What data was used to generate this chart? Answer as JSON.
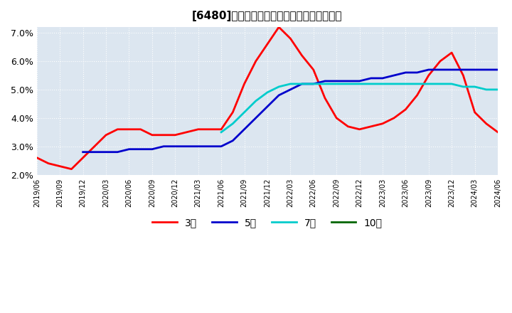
{
  "title": "[6480]　経常利益マージンの標準偏差の推移",
  "ylim": [
    0.02,
    0.072
  ],
  "yticks": [
    0.02,
    0.03,
    0.04,
    0.05,
    0.06,
    0.07
  ],
  "ytick_labels": [
    "2.0%",
    "3.0%",
    "4.0%",
    "5.0%",
    "6.0%",
    "7.0%"
  ],
  "legend_labels": [
    "3年",
    "5年",
    "7年",
    "10年"
  ],
  "legend_colors": [
    "#ff0000",
    "#0000cc",
    "#00cccc",
    "#006600"
  ],
  "background_color": "#dce6f0",
  "series_3y": {
    "y": [
      0.026,
      0.024,
      0.023,
      0.022,
      0.026,
      0.03,
      0.034,
      0.036,
      0.036,
      0.036,
      0.034,
      0.034,
      0.034,
      0.035,
      0.036,
      0.036,
      0.036,
      0.042,
      0.052,
      0.06,
      0.066,
      0.072,
      0.068,
      0.062,
      0.057,
      0.047,
      0.04,
      0.037,
      0.036,
      0.037,
      0.038,
      0.04,
      0.043,
      0.048,
      0.055,
      0.06,
      0.063,
      0.055,
      0.042,
      0.038,
      0.035
    ]
  },
  "series_5y": {
    "y": [
      null,
      null,
      null,
      null,
      0.028,
      0.028,
      0.028,
      0.028,
      0.029,
      0.029,
      0.029,
      0.03,
      0.03,
      0.03,
      0.03,
      0.03,
      0.03,
      0.032,
      0.036,
      0.04,
      0.044,
      0.048,
      0.05,
      0.052,
      0.052,
      0.053,
      0.053,
      0.053,
      0.053,
      0.054,
      0.054,
      0.055,
      0.056,
      0.056,
      0.057,
      0.057,
      0.057,
      0.057,
      0.057,
      0.057,
      0.057
    ]
  },
  "series_7y": {
    "y": [
      null,
      null,
      null,
      null,
      null,
      null,
      null,
      null,
      null,
      null,
      null,
      null,
      null,
      null,
      null,
      null,
      0.035,
      0.038,
      0.042,
      0.046,
      0.049,
      0.051,
      0.052,
      0.052,
      0.052,
      0.052,
      0.052,
      0.052,
      0.052,
      0.052,
      0.052,
      0.052,
      0.052,
      0.052,
      0.052,
      0.052,
      0.052,
      0.051,
      0.051,
      0.05,
      0.05
    ]
  },
  "series_10y": {
    "y": [
      null,
      null,
      null,
      null,
      null,
      null,
      null,
      null,
      null,
      null,
      null,
      null,
      null,
      null,
      null,
      null,
      null,
      null,
      null,
      null,
      null,
      null,
      null,
      null,
      null,
      null,
      null,
      null,
      null,
      null,
      null,
      null,
      null,
      null,
      null,
      null,
      null,
      null,
      null,
      null,
      null
    ]
  },
  "x_tick_labels": [
    "2019/06",
    "2019/09",
    "2019/12",
    "2020/03",
    "2020/06",
    "2020/09",
    "2020/12",
    "2021/03",
    "2021/06",
    "2021/09",
    "2021/12",
    "2022/03",
    "2022/06",
    "2022/09",
    "2022/12",
    "2023/03",
    "2023/06",
    "2023/09",
    "2023/12",
    "2024/03",
    "2024/06"
  ],
  "x_tick_positions": [
    0,
    2,
    4,
    6,
    8,
    10,
    12,
    14,
    16,
    18,
    20,
    22,
    24,
    26,
    28,
    30,
    32,
    34,
    36,
    38,
    40
  ]
}
